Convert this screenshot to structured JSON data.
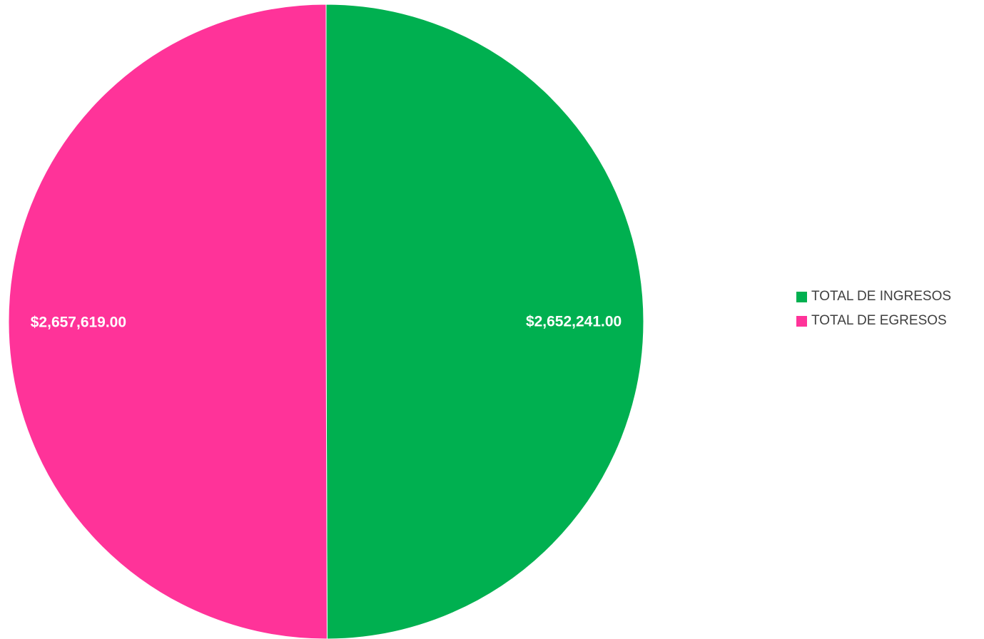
{
  "chart_data": {
    "type": "pie",
    "title": "",
    "categories": [
      "TOTAL DE INGRESOS",
      "TOTAL DE EGRESOS"
    ],
    "values": [
      2652241.0,
      2657619.0
    ],
    "data_labels": [
      "$2,652,241.00",
      "$2,657,619.00"
    ],
    "colors": [
      "#00B050",
      "#FF3399"
    ],
    "legend_position": "right"
  },
  "legend": {
    "items": [
      {
        "label": "TOTAL DE INGRESOS",
        "color": "#00B050"
      },
      {
        "label": "TOTAL DE EGRESOS",
        "color": "#FF3399"
      }
    ]
  }
}
